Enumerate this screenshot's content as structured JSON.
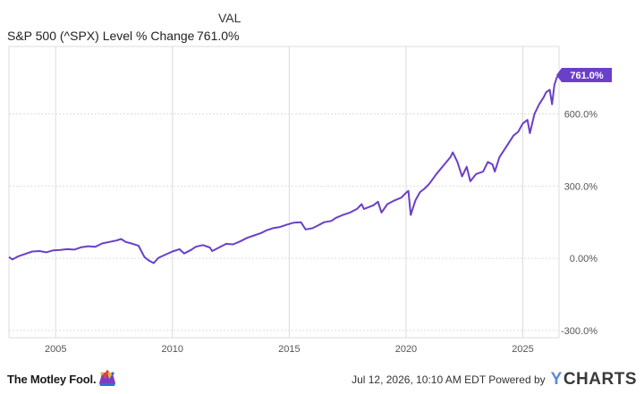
{
  "legend": {
    "header": "VAL",
    "series_label": "S&P 500 (^SPX) Level % Change",
    "series_value": "761.0%"
  },
  "footer": {
    "brand": "The Motley Fool.",
    "timestamp_text": "Jul 12, 2026, 10:10 AM EDT Powered by",
    "powered_logo": "YCHARTS"
  },
  "colors": {
    "line": "#6a3fc9",
    "grid": "#dcdcdc",
    "axis_text": "#555555",
    "badge_text": "#ffffff"
  },
  "chart_data": {
    "type": "line",
    "title": "",
    "xlabel": "",
    "ylabel": "",
    "xlim": [
      2003.0,
      2026.55
    ],
    "ylim": [
      -330,
      880
    ],
    "grid": true,
    "legend_position": "top-left",
    "x_ticks": [
      {
        "value": 2005,
        "label": "2005"
      },
      {
        "value": 2010,
        "label": "2010"
      },
      {
        "value": 2015,
        "label": "2015"
      },
      {
        "value": 2020,
        "label": "2020"
      },
      {
        "value": 2025,
        "label": "2025"
      }
    ],
    "y_ticks": [
      {
        "value": -300,
        "label": "-300.0%"
      },
      {
        "value": 0,
        "label": "0.00%"
      },
      {
        "value": 300,
        "label": "300.0%"
      },
      {
        "value": 600,
        "label": "600.0%"
      }
    ],
    "last_value_label": "761.0%",
    "series": [
      {
        "name": "S&P 500 (^SPX) Level % Change",
        "points": [
          [
            2003.0,
            5
          ],
          [
            2003.15,
            -5
          ],
          [
            2003.4,
            8
          ],
          [
            2003.7,
            18
          ],
          [
            2004.0,
            28
          ],
          [
            2004.3,
            30
          ],
          [
            2004.6,
            25
          ],
          [
            2004.9,
            33
          ],
          [
            2005.2,
            35
          ],
          [
            2005.5,
            38
          ],
          [
            2005.8,
            36
          ],
          [
            2006.1,
            46
          ],
          [
            2006.4,
            50
          ],
          [
            2006.7,
            48
          ],
          [
            2007.0,
            62
          ],
          [
            2007.3,
            68
          ],
          [
            2007.6,
            74
          ],
          [
            2007.8,
            80
          ],
          [
            2008.0,
            68
          ],
          [
            2008.3,
            60
          ],
          [
            2008.55,
            52
          ],
          [
            2008.8,
            5
          ],
          [
            2009.0,
            -10
          ],
          [
            2009.2,
            -20
          ],
          [
            2009.4,
            2
          ],
          [
            2009.7,
            15
          ],
          [
            2010.0,
            28
          ],
          [
            2010.3,
            38
          ],
          [
            2010.5,
            20
          ],
          [
            2010.8,
            35
          ],
          [
            2011.0,
            48
          ],
          [
            2011.3,
            55
          ],
          [
            2011.6,
            45
          ],
          [
            2011.7,
            30
          ],
          [
            2012.0,
            45
          ],
          [
            2012.3,
            60
          ],
          [
            2012.6,
            58
          ],
          [
            2012.9,
            70
          ],
          [
            2013.2,
            85
          ],
          [
            2013.5,
            95
          ],
          [
            2013.8,
            105
          ],
          [
            2014.0,
            115
          ],
          [
            2014.3,
            125
          ],
          [
            2014.6,
            130
          ],
          [
            2014.9,
            140
          ],
          [
            2015.2,
            148
          ],
          [
            2015.5,
            150
          ],
          [
            2015.7,
            120
          ],
          [
            2016.0,
            125
          ],
          [
            2016.2,
            135
          ],
          [
            2016.5,
            150
          ],
          [
            2016.8,
            155
          ],
          [
            2017.0,
            168
          ],
          [
            2017.3,
            180
          ],
          [
            2017.6,
            190
          ],
          [
            2017.9,
            205
          ],
          [
            2018.1,
            225
          ],
          [
            2018.2,
            205
          ],
          [
            2018.6,
            220
          ],
          [
            2018.8,
            235
          ],
          [
            2018.95,
            190
          ],
          [
            2019.2,
            225
          ],
          [
            2019.5,
            240
          ],
          [
            2019.8,
            252
          ],
          [
            2020.0,
            272
          ],
          [
            2020.1,
            280
          ],
          [
            2020.2,
            180
          ],
          [
            2020.4,
            240
          ],
          [
            2020.6,
            275
          ],
          [
            2020.8,
            290
          ],
          [
            2021.0,
            310
          ],
          [
            2021.3,
            350
          ],
          [
            2021.6,
            385
          ],
          [
            2021.9,
            420
          ],
          [
            2022.0,
            440
          ],
          [
            2022.2,
            400
          ],
          [
            2022.4,
            340
          ],
          [
            2022.5,
            360
          ],
          [
            2022.6,
            380
          ],
          [
            2022.75,
            320
          ],
          [
            2023.0,
            350
          ],
          [
            2023.3,
            360
          ],
          [
            2023.5,
            400
          ],
          [
            2023.7,
            390
          ],
          [
            2023.8,
            360
          ],
          [
            2024.0,
            420
          ],
          [
            2024.2,
            450
          ],
          [
            2024.4,
            480
          ],
          [
            2024.6,
            510
          ],
          [
            2024.8,
            525
          ],
          [
            2025.0,
            560
          ],
          [
            2025.2,
            575
          ],
          [
            2025.3,
            520
          ],
          [
            2025.5,
            600
          ],
          [
            2025.7,
            640
          ],
          [
            2025.9,
            670
          ],
          [
            2026.0,
            690
          ],
          [
            2026.15,
            700
          ],
          [
            2026.25,
            640
          ],
          [
            2026.35,
            720
          ],
          [
            2026.45,
            750
          ],
          [
            2026.53,
            761
          ]
        ]
      }
    ]
  }
}
